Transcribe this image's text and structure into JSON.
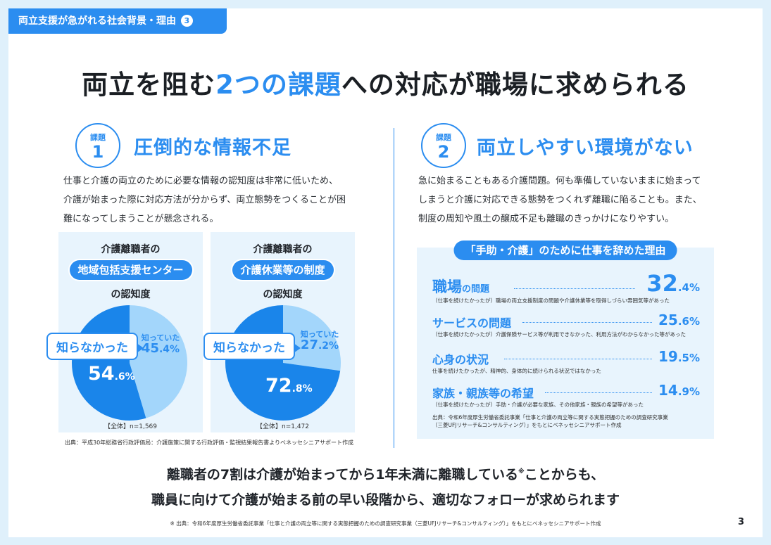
{
  "header": {
    "tab_label": "両立支援が急がれる社会背景・理由",
    "tab_number": "3",
    "title_part1": "両立を阻む",
    "title_highlight": "2つの課題",
    "title_part2": "への対応が職場に求められる"
  },
  "issue1": {
    "badge_label": "課題",
    "badge_number": "1",
    "heading": "圧倒的な情報不足",
    "text_lines": [
      "仕事と介護の両立のために必要な情報の認知度は非常に低いため、",
      "介護が始まった際に対応方法が分からず、両立態勢をつくることが困",
      "難になってしまうことが懸念される。"
    ],
    "charts_source": "出典：平成30年総務省行政評価局：介護施策に関する行政評価・監視結果報告書よりベネッセシニアサポート作成"
  },
  "chart_data": [
    {
      "type": "pie",
      "title_prefix": "介護離職者の",
      "title_highlight": "地域包括支援センター",
      "title_suffix": "の認知度",
      "slices": [
        {
          "label": "知らなかった",
          "value": 54.6,
          "int": "54",
          "dec": ".6%",
          "color": "#1a85ea"
        },
        {
          "label": "知っていた",
          "value": 45.4,
          "int": "45",
          "dec": ".4%",
          "color": "#a3d6fb"
        }
      ],
      "sample": "【全体】n=1,569"
    },
    {
      "type": "pie",
      "title_prefix": "介護離職者の",
      "title_highlight": "介護休業等の制度",
      "title_suffix": "の認知度",
      "slices": [
        {
          "label": "知らなかった",
          "value": 72.8,
          "int": "72",
          "dec": ".8%",
          "color": "#1a85ea"
        },
        {
          "label": "知っていた",
          "value": 27.2,
          "int": "27",
          "dec": ".2%",
          "color": "#a3d6fb"
        }
      ],
      "sample": "【全体】n=1,472"
    }
  ],
  "issue2": {
    "badge_label": "課題",
    "badge_number": "2",
    "heading": "両立しやすい環境がない",
    "text_lines": [
      "急に始まることもある介護問題。何も準備していないままに始まって",
      "しまうと介護に対応できる態勢をつくれず離職に陥ることも。また、",
      "制度の周知や風土の醸成不足も離職のきっかけになりやすい。"
    ]
  },
  "reasons": {
    "title": "「手助・介護」のために仕事を辞めた理由",
    "items": [
      {
        "name": "職場",
        "name_small": "の問題",
        "pct_int": "32",
        "pct_dec": ".4%",
        "desc": "（仕事を続けたかったが）職場の両立支援制度の問題や介護休業等を取得しづらい雰囲気等があった"
      },
      {
        "name": "サービスの問題",
        "name_small": "",
        "pct_int": "25",
        "pct_dec": ".6%",
        "desc": "（仕事を続けたかったが）介護保険サービス等が利用できなかった、利用方法がわからなかった等があった"
      },
      {
        "name": "心身の状況",
        "name_small": "",
        "pct_int": "19",
        "pct_dec": ".5%",
        "desc": "仕事を続けたかったが、精神的、身体的に続けられる状況ではなかった"
      },
      {
        "name": "家族・親族等の希望",
        "name_small": "",
        "pct_int": "14",
        "pct_dec": ".9%",
        "desc": "（仕事を続けたかったが）手助・介護が必要な家族、その他家族・親族の希望等があった"
      }
    ],
    "source_line1": "出典：令和6年度厚生労働省委託事業「仕事と介護の両立等に関する実態把握のための調査研究事業",
    "source_line2": "（三菱UFJリサーチ&コンサルティング）」をもとにベネッセシニアサポート作成"
  },
  "bottom": {
    "line1_main": "離職者の7割は介護が始まってから1年未満に離職している",
    "line1_mark": "※",
    "line1_end": "ことからも、",
    "line2": "職員に向けて介護が始まる前の早い段階から、適切なフォローが求められます",
    "footnote": "※ 出典：令和6年度厚生労働省委託事業「仕事と介護の両立等に関する実態把握のための調査研究事業（三菱UFJリサーチ&コンサルティング）」をもとにベネッセシニアサポート作成",
    "page_number": "3"
  }
}
